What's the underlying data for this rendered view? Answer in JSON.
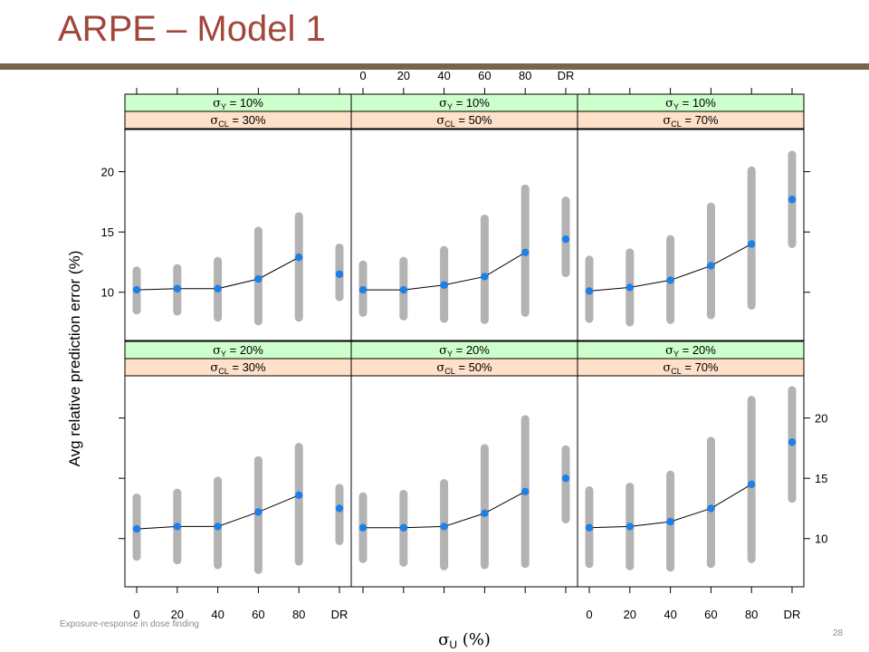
{
  "slide": {
    "title": "ARPE – Model 1",
    "footer": "Exposure-response in dose finding",
    "page_number": "28"
  },
  "chart_data": {
    "type": "scatter",
    "layout": "lattice 3 columns x 2 rows",
    "ylabel": "Avg relative prediction error (%)",
    "xlabel": "σU (%)",
    "x_ticks": [
      "0",
      "20",
      "40",
      "60",
      "80",
      "DR"
    ],
    "y_ticks": [
      "10",
      "15",
      "20"
    ],
    "ylim": [
      6,
      23.5
    ],
    "colors": {
      "strip_top": "#ccffcc",
      "strip_bottom": "#ffe0c8",
      "point": "#1f7fe8",
      "bar": "#b3b3b3",
      "line": "#000000"
    },
    "panels": [
      {
        "strip_top": {
          "sym": "σ",
          "sub": "Y",
          "text": " = 10%"
        },
        "strip_bottom": {
          "sym": "σ",
          "sub": "CL",
          "text": " = 30%"
        },
        "values": [
          10.2,
          10.3,
          10.3,
          11.1,
          12.9
        ],
        "low": [
          8.5,
          8.4,
          7.9,
          7.6,
          7.9
        ],
        "high": [
          11.8,
          12.0,
          12.6,
          15.1,
          16.3
        ],
        "dr": {
          "value": 11.5,
          "low": 9.6,
          "high": 13.7
        }
      },
      {
        "strip_top": {
          "sym": "σ",
          "sub": "Y",
          "text": " = 10%"
        },
        "strip_bottom": {
          "sym": "σ",
          "sub": "CL",
          "text": " = 50%"
        },
        "values": [
          10.2,
          10.2,
          10.6,
          11.3,
          13.3
        ],
        "low": [
          8.3,
          8.0,
          7.8,
          7.7,
          8.3
        ],
        "high": [
          12.3,
          12.6,
          13.5,
          16.1,
          18.6
        ],
        "dr": {
          "value": 14.4,
          "low": 11.6,
          "high": 17.6
        }
      },
      {
        "strip_top": {
          "sym": "σ",
          "sub": "Y",
          "text": " = 10%"
        },
        "strip_bottom": {
          "sym": "σ",
          "sub": "CL",
          "text": " = 70%"
        },
        "values": [
          10.1,
          10.4,
          11.0,
          12.2,
          14.0
        ],
        "low": [
          7.8,
          7.5,
          7.7,
          8.1,
          8.9
        ],
        "high": [
          12.7,
          13.3,
          14.4,
          17.1,
          20.1
        ],
        "dr": {
          "value": 17.7,
          "low": 14.0,
          "high": 21.4
        }
      },
      {
        "strip_top": {
          "sym": "σ",
          "sub": "Y",
          "text": " = 20%"
        },
        "strip_bottom": {
          "sym": "σ",
          "sub": "CL",
          "text": " = 30%"
        },
        "values": [
          10.8,
          11.0,
          11.0,
          12.2,
          13.6
        ],
        "low": [
          8.5,
          8.2,
          7.8,
          7.4,
          8.1
        ],
        "high": [
          13.4,
          13.8,
          14.8,
          16.5,
          17.6
        ],
        "dr": {
          "value": 12.5,
          "low": 9.8,
          "high": 14.2
        }
      },
      {
        "strip_top": {
          "sym": "σ",
          "sub": "Y",
          "text": " = 20%"
        },
        "strip_bottom": {
          "sym": "σ",
          "sub": "CL",
          "text": " = 50%"
        },
        "values": [
          10.9,
          10.9,
          11.0,
          12.1,
          13.9
        ],
        "low": [
          8.3,
          8.0,
          7.7,
          7.8,
          7.9
        ],
        "high": [
          13.5,
          13.7,
          14.6,
          17.5,
          19.9
        ],
        "dr": {
          "value": 15.0,
          "low": 11.6,
          "high": 17.4
        }
      },
      {
        "strip_top": {
          "sym": "σ",
          "sub": "Y",
          "text": " = 20%"
        },
        "strip_bottom": {
          "sym": "σ",
          "sub": "CL",
          "text": " = 70%"
        },
        "values": [
          10.9,
          11.0,
          11.4,
          12.5,
          14.5
        ],
        "low": [
          7.9,
          7.7,
          7.6,
          7.9,
          8.3
        ],
        "high": [
          14.0,
          14.3,
          15.3,
          18.1,
          21.5
        ],
        "dr": {
          "value": 18.0,
          "low": 13.3,
          "high": 22.3
        }
      }
    ]
  }
}
